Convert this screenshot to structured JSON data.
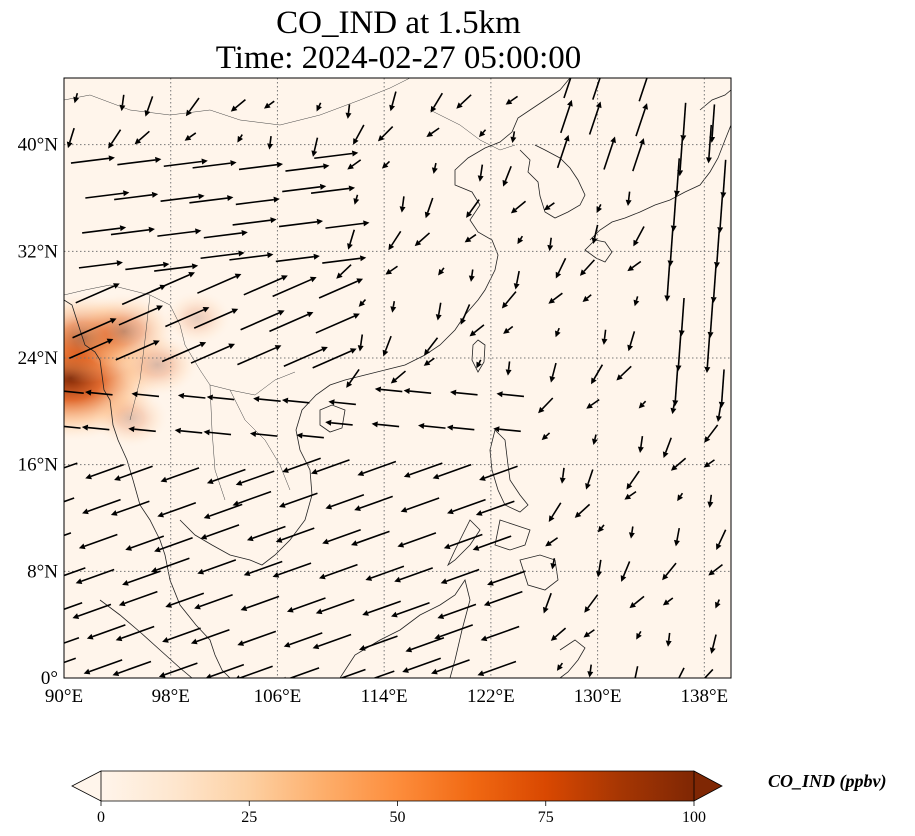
{
  "title": {
    "line1": "CO_IND at 1.5km",
    "line2": "Time: 2024-02-27 05:00:00"
  },
  "map": {
    "extent": {
      "lon_min": 90,
      "lon_max": 140,
      "lat_min": 0,
      "lat_max": 45
    },
    "lon_ticks": [
      {
        "value": 90,
        "label": "90°E"
      },
      {
        "value": 98,
        "label": "98°E"
      },
      {
        "value": 106,
        "label": "106°E"
      },
      {
        "value": 114,
        "label": "114°E"
      },
      {
        "value": 122,
        "label": "122°E"
      },
      {
        "value": 130,
        "label": "130°E"
      },
      {
        "value": 138,
        "label": "138°E"
      }
    ],
    "lat_ticks": [
      {
        "value": 0,
        "label": "0°"
      },
      {
        "value": 8,
        "label": "8°N"
      },
      {
        "value": 16,
        "label": "16°N"
      },
      {
        "value": 24,
        "label": "24°N"
      },
      {
        "value": 32,
        "label": "32°N"
      },
      {
        "value": 40,
        "label": "40°N"
      }
    ],
    "gridlines": true,
    "background_color": "#fff5eb",
    "hotspots": [
      {
        "lon": 90.5,
        "lat": 22.5,
        "level": 1.0
      },
      {
        "lon": 91.5,
        "lat": 25.5,
        "level": 0.6
      },
      {
        "lon": 94.5,
        "lat": 26.0,
        "level": 0.45
      },
      {
        "lon": 97.0,
        "lat": 23.5,
        "level": 0.3
      },
      {
        "lon": 95.0,
        "lat": 19.5,
        "level": 0.25
      },
      {
        "lon": 100.0,
        "lat": 27.0,
        "level": 0.2
      }
    ]
  },
  "colorbar": {
    "label": "CO_IND (ppbv)",
    "min": 0,
    "max": 100,
    "ticks": [
      {
        "value": 0,
        "label": "0"
      },
      {
        "value": 25,
        "label": "25"
      },
      {
        "value": 50,
        "label": "50"
      },
      {
        "value": 75,
        "label": "75"
      },
      {
        "value": 100,
        "label": "100"
      }
    ],
    "colors": [
      "#fff5eb",
      "#fee6ce",
      "#fdd0a2",
      "#fdae6b",
      "#fd8d3c",
      "#f16913",
      "#d94801",
      "#a63603",
      "#7f2704"
    ]
  },
  "wind": {
    "lon_start": 91,
    "lat_start": 1,
    "lon_step": 3,
    "lat_step": 2.5
  }
}
